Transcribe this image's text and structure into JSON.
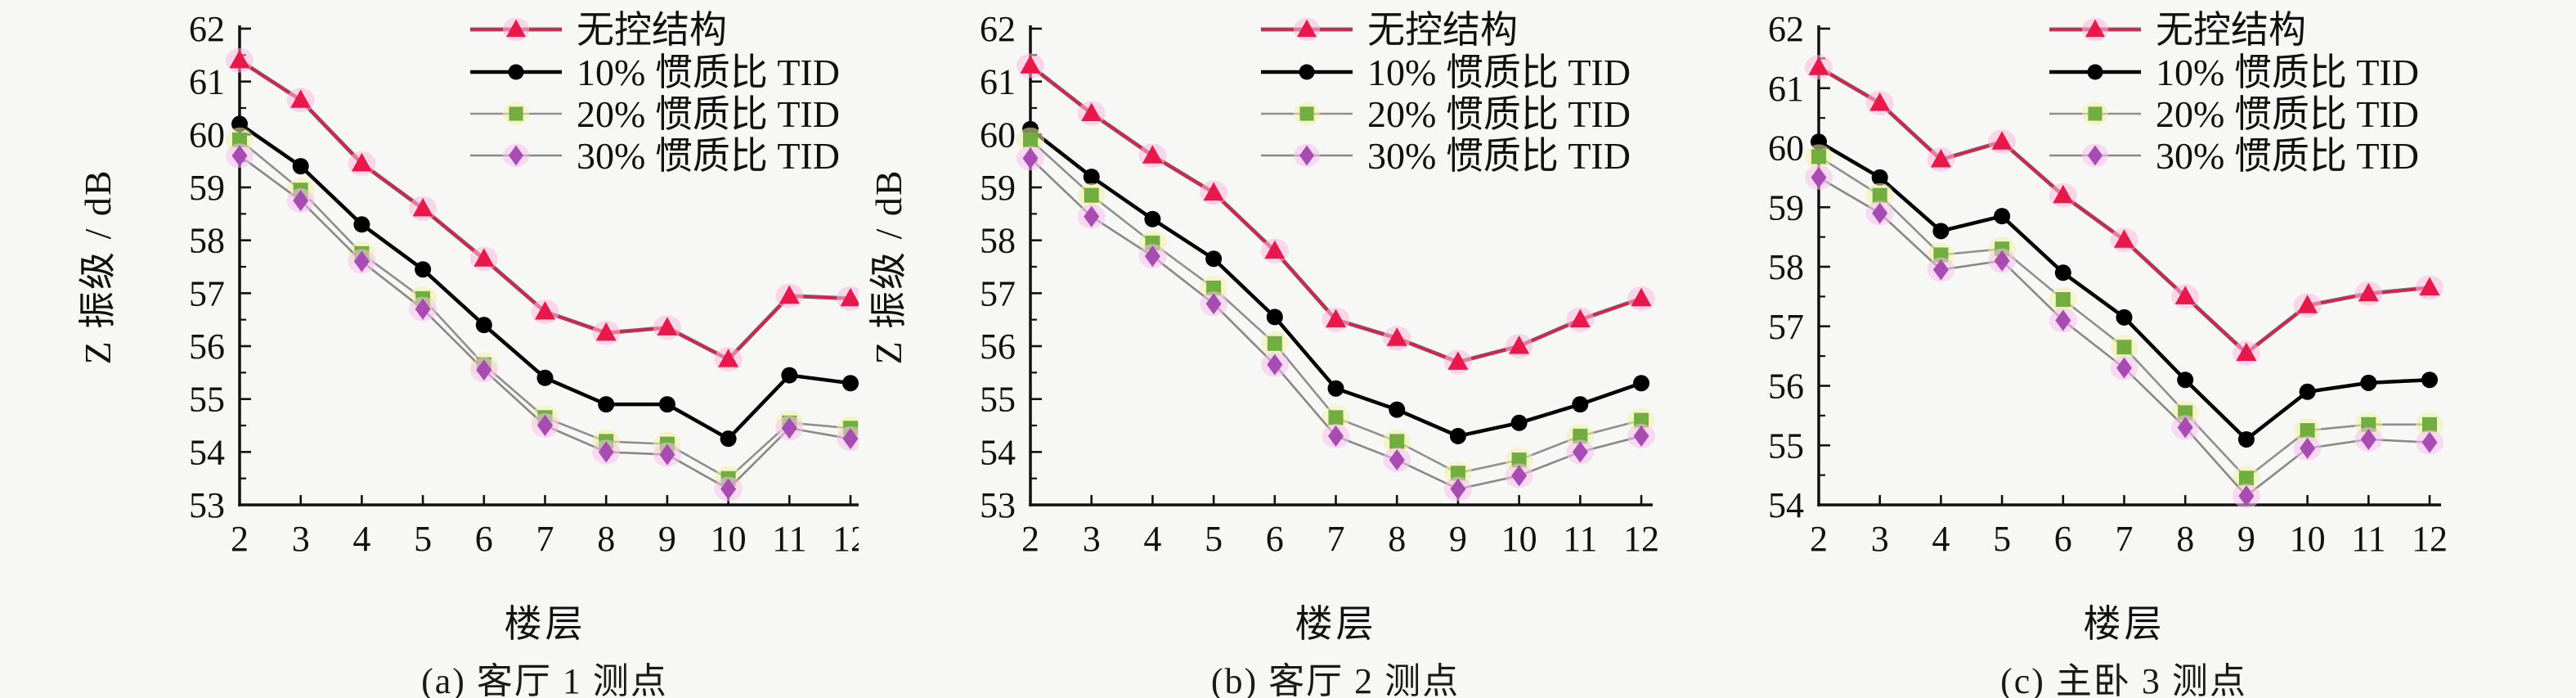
{
  "figure": {
    "background": "#f7f7f5",
    "axis_color": "#111111",
    "gray_line_color": "#8f8f8f"
  },
  "chart_data": [
    {
      "type": "line",
      "caption": "(a) 客厅 1 测点",
      "xlabel": "楼层",
      "ylabel": "Z 振级 / dB",
      "x": [
        2,
        3,
        4,
        5,
        6,
        7,
        8,
        9,
        10,
        11,
        12
      ],
      "xlim": [
        2,
        12
      ],
      "ylim": [
        53,
        62
      ],
      "ytick_step": 1,
      "grid": "off",
      "legend_position": "top-right",
      "series": [
        {
          "name": "无控结构",
          "key": "uncontrolled",
          "marker": "triangle",
          "color": "#e8184a",
          "line_color": "#b03048",
          "glow": "#ffb9dc",
          "values": [
            61.4,
            60.65,
            59.45,
            58.6,
            57.65,
            56.65,
            56.25,
            56.35,
            55.75,
            56.95,
            56.9
          ]
        },
        {
          "name": "10% 惯质比 TID",
          "key": "tid-10",
          "marker": "circle",
          "color": "#000000",
          "line_color": "#000000",
          "glow": "none",
          "values": [
            60.2,
            59.4,
            58.3,
            57.45,
            56.4,
            55.4,
            54.9,
            54.9,
            54.25,
            55.45,
            55.3
          ]
        },
        {
          "name": "20% 惯质比 TID",
          "key": "tid-20",
          "marker": "square",
          "color": "#72ad3f",
          "line_color": "#8f8f8f",
          "glow": "#f2f3a8",
          "values": [
            59.9,
            58.95,
            57.75,
            56.9,
            55.65,
            54.65,
            54.2,
            54.15,
            53.5,
            54.55,
            54.45
          ]
        },
        {
          "name": "30% 惯质比 TID",
          "key": "tid-30",
          "marker": "diamond",
          "color": "#a84cb4",
          "line_color": "#888888",
          "glow": "#f8c2ec",
          "values": [
            59.6,
            58.75,
            57.6,
            56.7,
            55.55,
            54.5,
            54.0,
            53.95,
            53.3,
            54.45,
            54.25
          ]
        }
      ]
    },
    {
      "type": "line",
      "caption": "(b) 客厅 2 测点",
      "xlabel": "楼层",
      "ylabel": "Z 振级 / dB",
      "x": [
        2,
        3,
        4,
        5,
        6,
        7,
        8,
        9,
        10,
        11,
        12
      ],
      "xlim": [
        2,
        12
      ],
      "ylim": [
        53,
        62
      ],
      "ytick_step": 1,
      "grid": "off",
      "legend_position": "top-right",
      "series": [
        {
          "name": "无控结构",
          "key": "uncontrolled",
          "marker": "triangle",
          "color": "#e8184a",
          "line_color": "#b03048",
          "glow": "#ffb9dc",
          "values": [
            61.3,
            60.4,
            59.6,
            58.9,
            57.8,
            56.5,
            56.15,
            55.7,
            56.0,
            56.5,
            56.9
          ]
        },
        {
          "name": "10% 惯质比 TID",
          "key": "tid-10",
          "marker": "circle",
          "color": "#000000",
          "line_color": "#000000",
          "glow": "none",
          "values": [
            60.1,
            59.2,
            58.4,
            57.65,
            56.55,
            55.2,
            54.8,
            54.3,
            54.55,
            54.9,
            55.3
          ]
        },
        {
          "name": "20% 惯质比 TID",
          "key": "tid-20",
          "marker": "square",
          "color": "#72ad3f",
          "line_color": "#8f8f8f",
          "glow": "#f2f3a8",
          "values": [
            59.9,
            58.85,
            57.95,
            57.1,
            56.05,
            54.65,
            54.2,
            53.6,
            53.85,
            54.3,
            54.6
          ]
        },
        {
          "name": "30% 惯质比 TID",
          "key": "tid-30",
          "marker": "diamond",
          "color": "#a84cb4",
          "line_color": "#888888",
          "glow": "#f8c2ec",
          "values": [
            59.55,
            58.45,
            57.7,
            56.8,
            55.65,
            54.3,
            53.85,
            53.3,
            53.55,
            54.0,
            54.3
          ]
        }
      ]
    },
    {
      "type": "line",
      "caption": "(c) 主卧 3 测点",
      "xlabel": "楼层",
      "ylabel": "Z 振级 / dB",
      "x": [
        2,
        3,
        4,
        5,
        6,
        7,
        8,
        9,
        10,
        11,
        12
      ],
      "xlim": [
        2,
        12
      ],
      "ylim": [
        54,
        62
      ],
      "ytick_step": 1,
      "grid": "off",
      "legend_position": "top-right",
      "series": [
        {
          "name": "无控结构",
          "key": "uncontrolled",
          "marker": "triangle",
          "color": "#e8184a",
          "line_color": "#b03048",
          "glow": "#ffb9dc",
          "values": [
            61.35,
            60.75,
            59.8,
            60.1,
            59.2,
            58.45,
            57.5,
            56.55,
            57.35,
            57.55,
            57.65
          ]
        },
        {
          "name": "10% 惯质比 TID",
          "key": "tid-10",
          "marker": "circle",
          "color": "#000000",
          "line_color": "#000000",
          "glow": "none",
          "values": [
            60.1,
            59.5,
            58.6,
            58.85,
            57.9,
            57.15,
            56.1,
            55.1,
            55.9,
            56.05,
            56.1
          ]
        },
        {
          "name": "20% 惯质比 TID",
          "key": "tid-20",
          "marker": "square",
          "color": "#72ad3f",
          "line_color": "#8f8f8f",
          "glow": "#f2f3a8",
          "values": [
            59.85,
            59.2,
            58.2,
            58.3,
            57.45,
            56.65,
            55.55,
            54.45,
            55.25,
            55.35,
            55.35
          ]
        },
        {
          "name": "30% 惯质比 TID",
          "key": "tid-30",
          "marker": "diamond",
          "color": "#a84cb4",
          "line_color": "#888888",
          "glow": "#f8c2ec",
          "values": [
            59.5,
            58.9,
            57.95,
            58.1,
            57.1,
            56.3,
            55.3,
            54.15,
            54.95,
            55.1,
            55.05
          ]
        }
      ]
    }
  ]
}
